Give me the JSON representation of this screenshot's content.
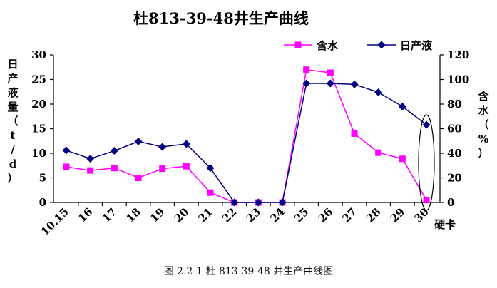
{
  "chart_data": {
    "type": "line",
    "title": "杜813-39-48井生产曲线",
    "categories": [
      "10.15",
      "16",
      "17",
      "18",
      "19",
      "20",
      "21",
      "22",
      "23",
      "24",
      "25",
      "26",
      "27",
      "28",
      "29",
      "30"
    ],
    "y_left": {
      "label": "日产液量（t/d）",
      "ylim": [
        0,
        30
      ],
      "ticks": [
        0,
        5,
        10,
        15,
        20,
        25,
        30
      ]
    },
    "y_right": {
      "label": "含水（%）",
      "ylim": [
        0,
        120
      ],
      "ticks": [
        0,
        20,
        40,
        60,
        80,
        100,
        120
      ]
    },
    "series": [
      {
        "name": "含水",
        "axis": "right",
        "color": "#ff00ff",
        "marker": "square",
        "values": [
          29,
          26,
          28,
          20,
          27.5,
          29.5,
          8,
          0,
          0,
          0,
          108,
          105.5,
          56,
          40.5,
          35.5,
          2
        ]
      },
      {
        "name": "日产液",
        "axis": "left",
        "color": "#000080",
        "marker": "diamond",
        "values": [
          10.6,
          8.9,
          10.5,
          12.4,
          11.3,
          11.9,
          7.0,
          0,
          0,
          0,
          24.2,
          24.2,
          24.0,
          22.4,
          19.5,
          15.8
        ]
      }
    ],
    "annotation": "硬卡",
    "grid": false,
    "legend": "top-right"
  },
  "caption": "图 2.2-1 杜 813-39-48 井生产曲线图"
}
